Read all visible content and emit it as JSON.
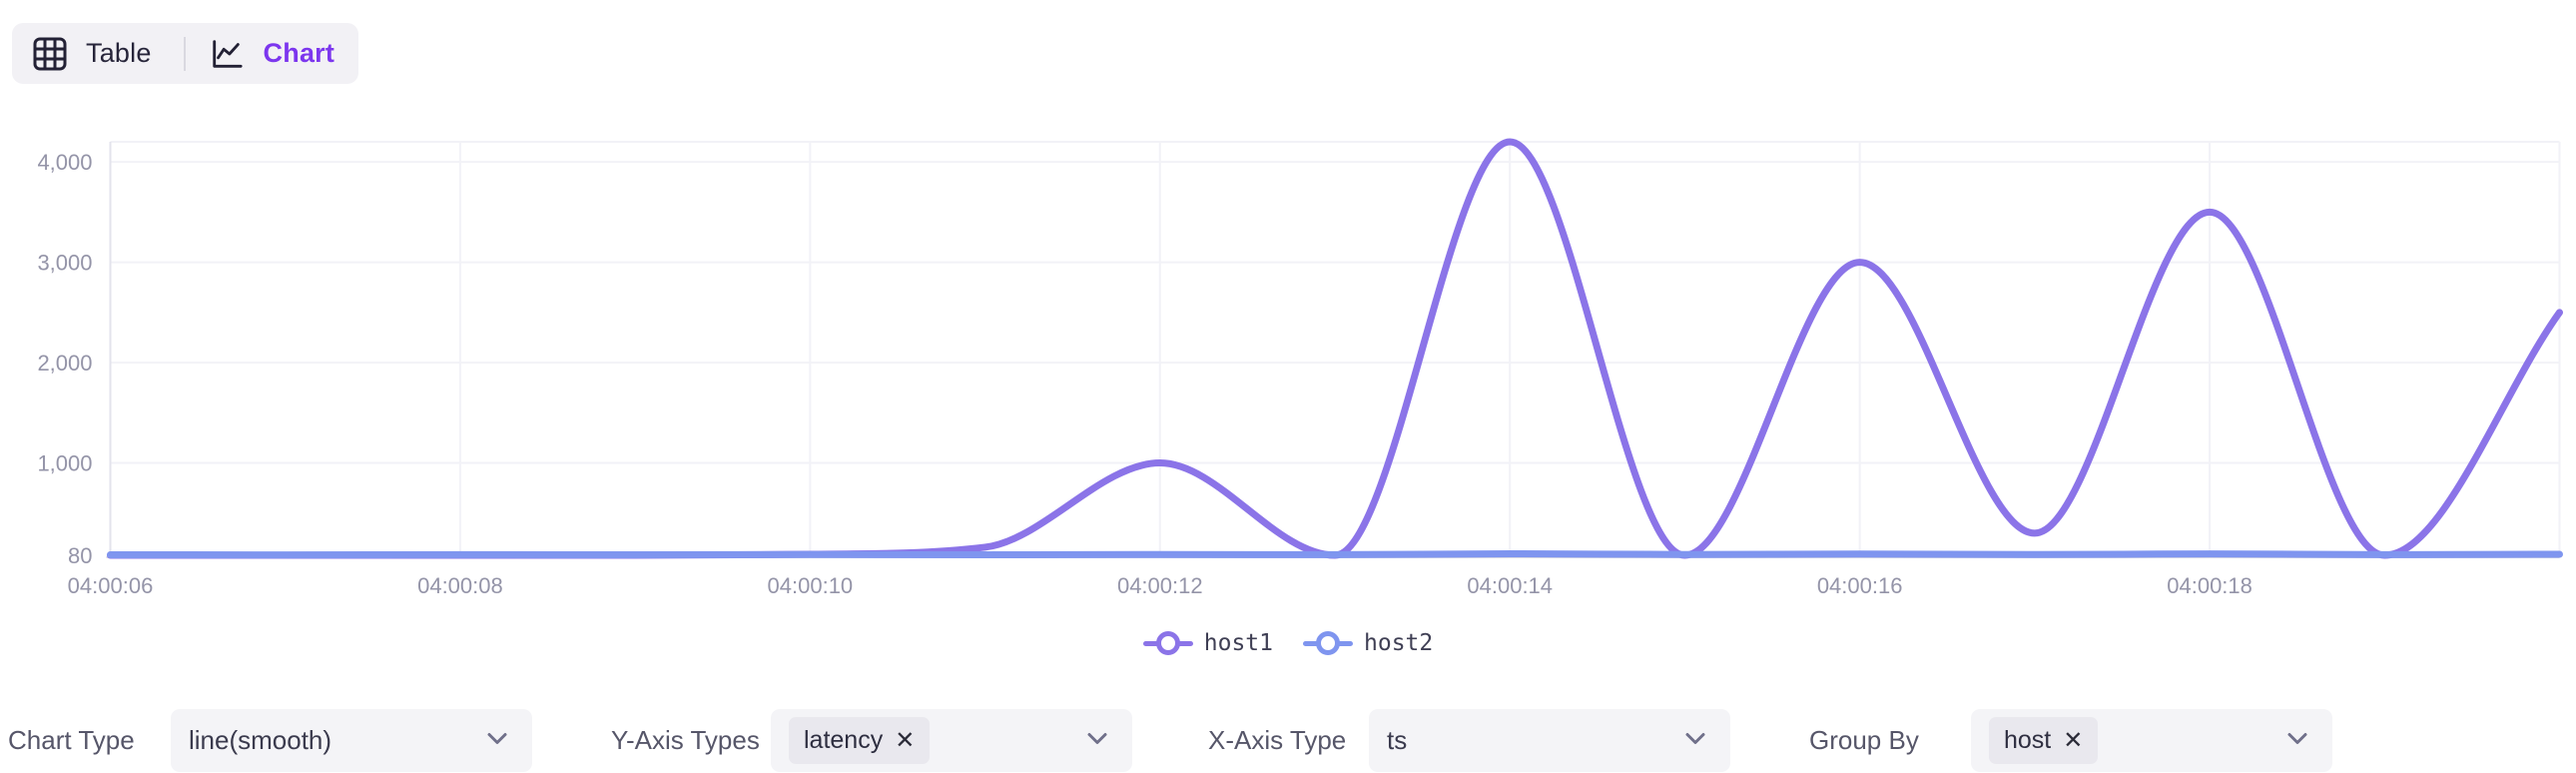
{
  "toggle": {
    "table_label": "Table",
    "chart_label": "Chart"
  },
  "icons": {
    "close": "✕"
  },
  "colors": {
    "accent": "#7c36ee",
    "host1_line": "#8b74e8",
    "host2_line": "#7f95ef",
    "axis_text": "#9494a8",
    "grid_line": "#f2f2f7",
    "axis_line": "#d9d9e2"
  },
  "controls": [
    {
      "label": "Chart Type",
      "type": "select",
      "value": "line(smooth)"
    },
    {
      "label": "Y-Axis Types",
      "type": "multiselect",
      "tags": [
        {
          "label": "latency"
        }
      ]
    },
    {
      "label": "X-Axis Type",
      "type": "select",
      "value": "ts"
    },
    {
      "label": "Group By",
      "type": "multiselect",
      "tags": [
        {
          "label": "host"
        }
      ]
    }
  ],
  "chart_data": {
    "type": "line",
    "smooth": true,
    "title": "",
    "xlabel": "",
    "ylabel": "",
    "grid": true,
    "legend_position": "bottom",
    "x": [
      "04:00:06",
      "04:00:07",
      "04:00:08",
      "04:00:09",
      "04:00:10",
      "04:00:11",
      "04:00:12",
      "04:00:13",
      "04:00:14",
      "04:00:15",
      "04:00:16",
      "04:00:17",
      "04:00:18",
      "04:00:19",
      "04:00:20"
    ],
    "x_tick_labels": [
      "04:00:06",
      "04:00:08",
      "04:00:10",
      "04:00:12",
      "04:00:14",
      "04:00:16",
      "04:00:18"
    ],
    "y_ticks": [
      80,
      1000,
      2000,
      3000,
      4000
    ],
    "y_tick_labels": [
      "80",
      "1,000",
      "2,000",
      "3,000",
      "4,000"
    ],
    "ylim": [
      80,
      4200
    ],
    "series": [
      {
        "name": "host1",
        "color": "#8b74e8",
        "values": [
          80,
          80,
          80,
          80,
          90,
          160,
          1000,
          80,
          4200,
          80,
          3000,
          300,
          3500,
          80,
          2500
        ]
      },
      {
        "name": "host2",
        "color": "#7f95ef",
        "values": [
          85,
          84,
          86,
          85,
          87,
          85,
          88,
          86,
          95,
          88,
          92,
          87,
          94,
          86,
          90
        ]
      }
    ]
  }
}
